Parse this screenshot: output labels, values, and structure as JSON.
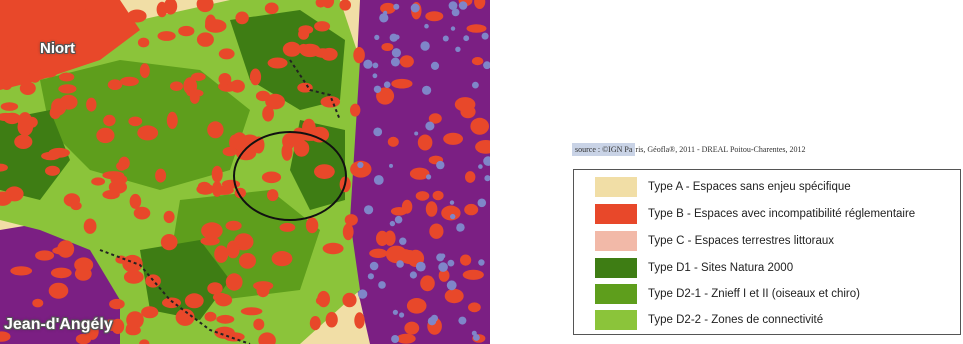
{
  "map": {
    "towns": [
      {
        "name": "Niort"
      },
      {
        "name": "Jean-d'Angély"
      }
    ],
    "colors": {
      "type_a": "#f1dea6",
      "type_b": "#e8482a",
      "type_c": "#f2b9a8",
      "type_d1": "#3e7d14",
      "type_d2_1": "#5e9e1c",
      "type_d2_2": "#8bc43a",
      "urban_purple": "#7b1f83",
      "blue_overlay": "#7f86c9"
    }
  },
  "source": {
    "highlighted": "source : ©IGN Pa",
    "rest": "ris, Géofla®, 2011 - DREAL Poitou-Charentes, 2012"
  },
  "legend": {
    "items": [
      {
        "label": "Type A - Espaces sans enjeu spécifique",
        "color": "#f1dea6"
      },
      {
        "label": "Type B - Espaces avec incompatibilité réglementaire",
        "color": "#e8482a"
      },
      {
        "label": "Type C - Espaces terrestres littoraux",
        "color": "#f2b9a8"
      },
      {
        "label": "Type D1 - Sites Natura 2000",
        "color": "#3e7d14"
      },
      {
        "label": "Type D2-1 - Znieff I et II (oiseaux et chiro)",
        "color": "#5e9e1c"
      },
      {
        "label": "Type D2-2 - Zones de connectivité",
        "color": "#8bc43a"
      }
    ]
  }
}
